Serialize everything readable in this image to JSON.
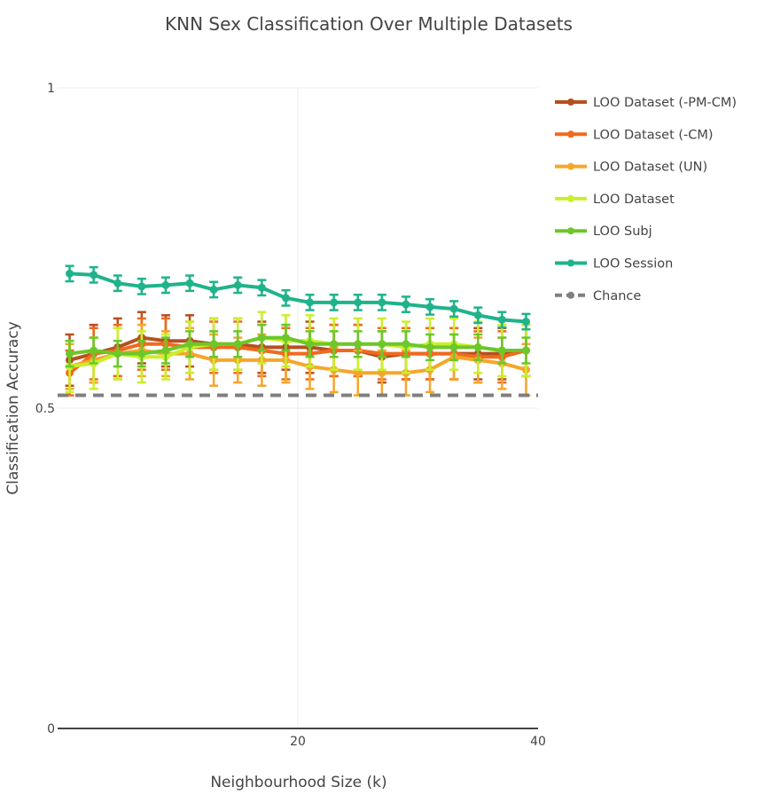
{
  "chart_data": {
    "type": "line",
    "title": "KNN Sex Classification Over Multiple Datasets",
    "xlabel": "Neighbourhood Size (k)",
    "ylabel": "Classification Accuracy",
    "xlim": [
      0,
      40
    ],
    "ylim": [
      0,
      1
    ],
    "x_ticks": [
      20,
      40
    ],
    "y_ticks": [
      0,
      0.5,
      1
    ],
    "x_tick_labels": [
      "20",
      "40"
    ],
    "y_tick_labels": [
      "0",
      "0.5",
      "1"
    ],
    "grid": true,
    "legend_position": "top-right",
    "x": [
      1,
      3,
      5,
      7,
      9,
      11,
      13,
      15,
      17,
      19,
      21,
      23,
      25,
      27,
      29,
      31,
      33,
      35,
      37,
      39
    ],
    "series": [
      {
        "name": "LOO Dataset (-PM-CM)",
        "color": "#b5501f",
        "values": [
          0.575,
          0.585,
          0.595,
          0.61,
          0.605,
          0.605,
          0.6,
          0.6,
          0.595,
          0.595,
          0.595,
          0.59,
          0.59,
          0.58,
          0.585,
          0.585,
          0.585,
          0.585,
          0.585,
          0.59
        ],
        "error": [
          0.04,
          0.045,
          0.045,
          0.04,
          0.04,
          0.04,
          0.04,
          0.04,
          0.04,
          0.035,
          0.04,
          0.04,
          0.04,
          0.04,
          0.04,
          0.04,
          0.04,
          0.04,
          0.04,
          0.04
        ]
      },
      {
        "name": "LOO Dataset (-CM)",
        "color": "#f06a1e",
        "values": [
          0.555,
          0.585,
          0.59,
          0.6,
          0.6,
          0.595,
          0.595,
          0.595,
          0.59,
          0.585,
          0.585,
          0.59,
          0.59,
          0.585,
          0.585,
          0.585,
          0.585,
          0.58,
          0.58,
          0.59
        ],
        "error": [
          0.035,
          0.04,
          0.04,
          0.04,
          0.04,
          0.04,
          0.04,
          0.04,
          0.04,
          0.04,
          0.04,
          0.04,
          0.04,
          0.04,
          0.04,
          0.04,
          0.04,
          0.04,
          0.04,
          0.04
        ]
      },
      {
        "name": "LOO Dataset (UN)",
        "color": "#f5a62a",
        "values": [
          0.565,
          0.575,
          0.585,
          0.59,
          0.585,
          0.585,
          0.575,
          0.575,
          0.575,
          0.575,
          0.565,
          0.56,
          0.555,
          0.555,
          0.555,
          0.56,
          0.58,
          0.575,
          0.57,
          0.56
        ],
        "error": [
          0.035,
          0.035,
          0.04,
          0.04,
          0.035,
          0.04,
          0.04,
          0.035,
          0.04,
          0.035,
          0.035,
          0.035,
          0.035,
          0.035,
          0.035,
          0.035,
          0.035,
          0.035,
          0.04,
          0.04
        ]
      },
      {
        "name": "LOO Dataset",
        "color": "#c9ef2b",
        "values": [
          0.565,
          0.57,
          0.585,
          0.58,
          0.58,
          0.595,
          0.6,
          0.6,
          0.61,
          0.605,
          0.605,
          0.6,
          0.6,
          0.6,
          0.595,
          0.6,
          0.6,
          0.595,
          0.59,
          0.59
        ],
        "error": [
          0.04,
          0.04,
          0.04,
          0.04,
          0.035,
          0.04,
          0.04,
          0.04,
          0.04,
          0.04,
          0.04,
          0.04,
          0.04,
          0.04,
          0.04,
          0.04,
          0.04,
          0.04,
          0.04,
          0.04
        ]
      },
      {
        "name": "LOO Subj",
        "color": "#6cc72a",
        "values": [
          0.585,
          0.59,
          0.585,
          0.585,
          0.59,
          0.6,
          0.6,
          0.6,
          0.61,
          0.61,
          0.6,
          0.6,
          0.6,
          0.6,
          0.6,
          0.595,
          0.595,
          0.595,
          0.59,
          0.59
        ],
        "error": [
          0.02,
          0.02,
          0.02,
          0.02,
          0.02,
          0.02,
          0.02,
          0.02,
          0.02,
          0.02,
          0.02,
          0.02,
          0.02,
          0.02,
          0.02,
          0.02,
          0.02,
          0.02,
          0.02,
          0.02
        ]
      },
      {
        "name": "LOO Session",
        "color": "#1fb38b",
        "values": [
          0.71,
          0.708,
          0.695,
          0.69,
          0.692,
          0.695,
          0.685,
          0.692,
          0.688,
          0.672,
          0.665,
          0.665,
          0.665,
          0.665,
          0.662,
          0.658,
          0.655,
          0.645,
          0.638,
          0.635
        ],
        "error": [
          0.012,
          0.012,
          0.012,
          0.012,
          0.012,
          0.012,
          0.012,
          0.012,
          0.012,
          0.012,
          0.012,
          0.012,
          0.012,
          0.012,
          0.012,
          0.012,
          0.012,
          0.012,
          0.012,
          0.012
        ]
      },
      {
        "name": "Chance",
        "color": "#7f7f7f",
        "dash": true,
        "values": [
          0.52,
          0.52
        ],
        "x": [
          0,
          40
        ]
      }
    ]
  }
}
